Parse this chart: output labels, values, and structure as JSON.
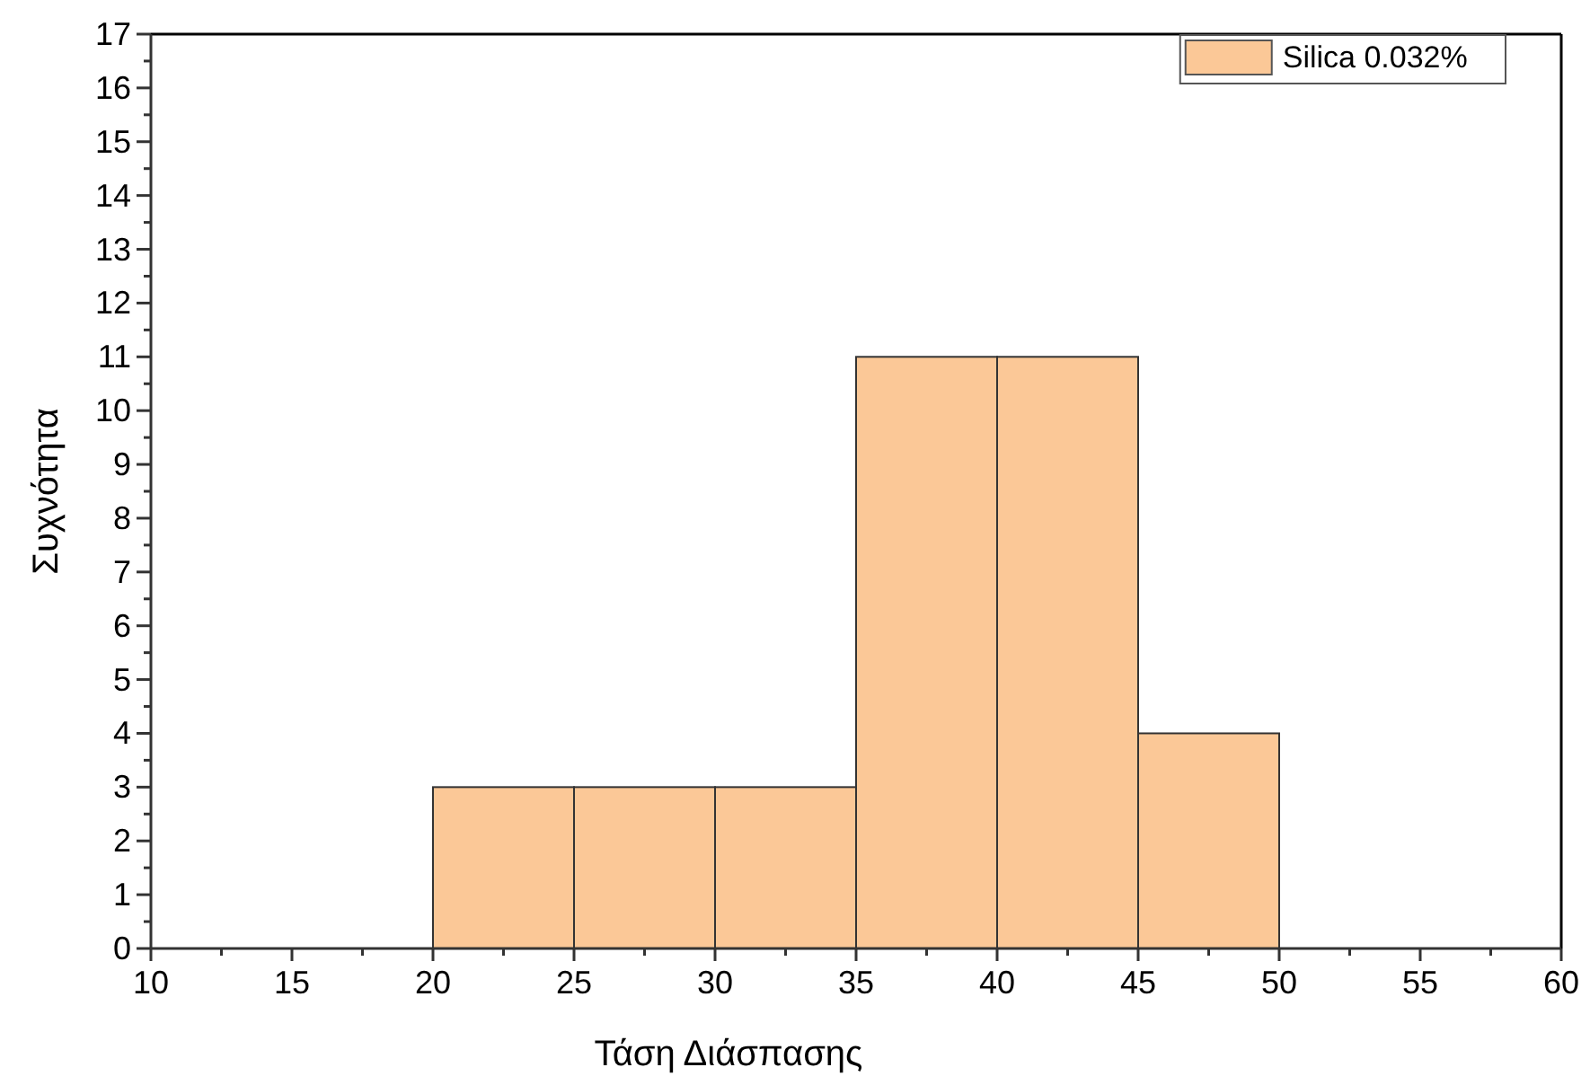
{
  "chart_data": {
    "type": "histogram",
    "xlabel": "Τάση Διάσπασης",
    "ylabel": "Συχνότητα",
    "bins": [
      20,
      25,
      30,
      35,
      40,
      45,
      50
    ],
    "series": [
      {
        "name": "Silica 0.032%",
        "color": "#fbc897",
        "values": [
          3,
          3,
          3,
          11,
          11,
          4
        ]
      }
    ],
    "xlim": [
      10,
      60
    ],
    "xticks": [
      10,
      {
        "value": 12.5,
        "label": null
      },
      15,
      {
        "value": 17.5,
        "label": null
      },
      20,
      {
        "value": 22.5,
        "label": null
      },
      25,
      {
        "value": 27.5,
        "label": null
      },
      30,
      {
        "value": 32.5,
        "label": null
      },
      35,
      {
        "value": 37.5,
        "label": null
      },
      40,
      {
        "value": 42.5,
        "label": null
      },
      45,
      {
        "value": 47.5,
        "label": null
      },
      50,
      {
        "value": 52.5,
        "label": null
      },
      55,
      {
        "value": 57.5,
        "label": null
      },
      60
    ],
    "ylim": [
      0,
      17
    ],
    "yticks": [
      0,
      {
        "value": 0.5,
        "label": null
      },
      1,
      {
        "value": 1.5,
        "label": null
      },
      2,
      {
        "value": 2.5,
        "label": null
      },
      3,
      {
        "value": 3.5,
        "label": null
      },
      4,
      {
        "value": 4.5,
        "label": null
      },
      5,
      {
        "value": 5.5,
        "label": null
      },
      6,
      {
        "value": 6.5,
        "label": null
      },
      7,
      {
        "value": 7.5,
        "label": null
      },
      8,
      {
        "value": 8.5,
        "label": null
      },
      9,
      {
        "value": 9.5,
        "label": null
      },
      10,
      {
        "value": 10.5,
        "label": null
      },
      11,
      {
        "value": 11.5,
        "label": null
      },
      12,
      {
        "value": 12.5,
        "label": null
      },
      13,
      {
        "value": 13.5,
        "label": null
      },
      14,
      {
        "value": 14.5,
        "label": null
      },
      15,
      {
        "value": 15.5,
        "label": null
      },
      16,
      {
        "value": 16.5,
        "label": null
      },
      17
    ],
    "grid": false,
    "legend": "top right"
  }
}
